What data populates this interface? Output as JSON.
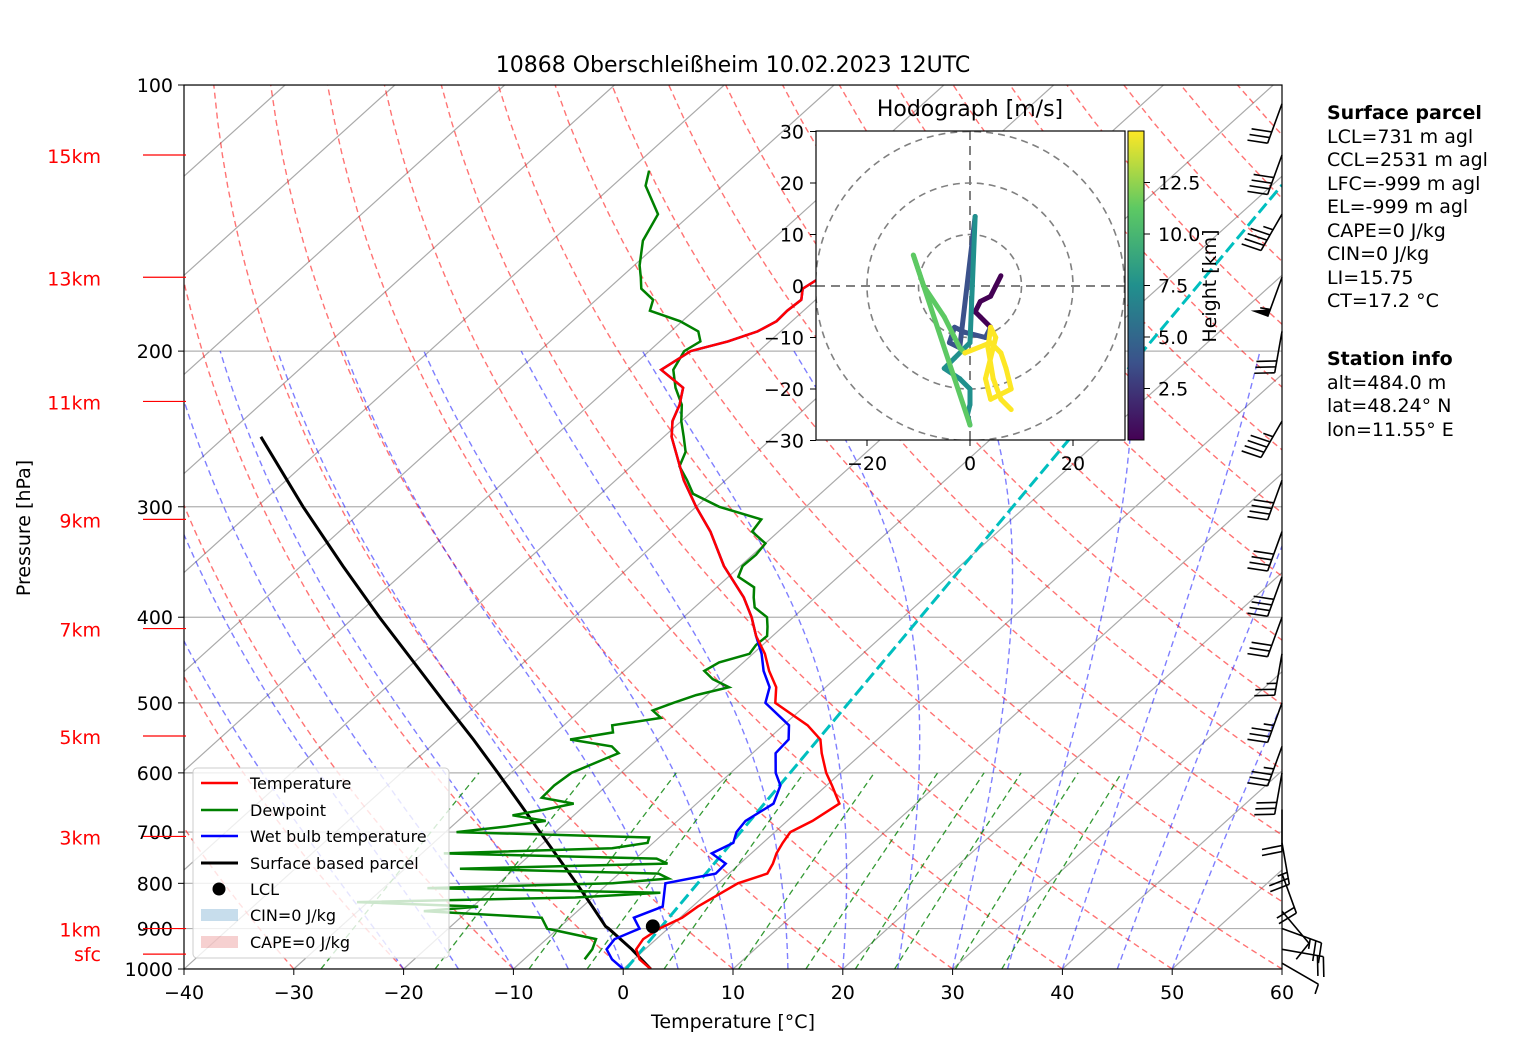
{
  "chart_data": {
    "type": "skew-t",
    "title": "10868 Oberschleißheim 10.02.2023 12UTC",
    "xlabel": "Temperature [°C]",
    "ylabel": "Pressure [hPa]",
    "xlim": [
      -40,
      60
    ],
    "ylim": [
      1000,
      100
    ],
    "y_scale": "log",
    "grid": true,
    "x_ticks": [
      "−40",
      "−30",
      "−20",
      "−10",
      "0",
      "10",
      "20",
      "30",
      "40",
      "50",
      "60"
    ],
    "y_ticks": [
      "100",
      "200",
      "300",
      "400",
      "500",
      "600",
      "700",
      "800",
      "900",
      "1000"
    ],
    "height_labels": [
      "15km",
      "13km",
      "11km",
      "9km",
      "7km",
      "5km",
      "3km",
      "1km",
      "sfc"
    ],
    "legend_position": "lower-left",
    "legend": {
      "temperature": "Temperature",
      "dewpoint": "Dewpoint",
      "wetbulb": "Wet bulb temperature",
      "parcel": "Surface based parcel",
      "lcl": "LCL",
      "cin": "CIN=0 J/kg",
      "cape": "CAPE=0 J/kg"
    },
    "colors": {
      "temperature": "#ff0000",
      "dewpoint": "#008000",
      "wetbulb": "#0000ff",
      "parcel": "#000000",
      "mixing_ratio_line": "#00bfbf"
    },
    "temperature": {
      "p": [
        1000,
        975,
        950,
        925,
        900,
        875,
        850,
        800,
        780,
        760,
        740,
        720,
        700,
        680,
        650,
        620,
        600,
        570,
        550,
        530,
        500,
        480,
        460,
        440,
        420,
        400,
        380,
        350,
        320,
        300,
        280,
        260,
        250,
        240,
        230,
        220,
        210,
        200,
        195,
        190,
        185,
        180,
        175,
        170,
        160,
        150,
        140,
        130,
        128,
        126,
        125
      ],
      "T": [
        2.5,
        0.5,
        -0.8,
        -1.2,
        -0.8,
        0.2,
        0.5,
        1.8,
        3.5,
        3.0,
        2.3,
        1.8,
        1.4,
        2.3,
        3.0,
        0.5,
        -1.3,
        -3.7,
        -5.2,
        -7.8,
        -13.0,
        -14.5,
        -16.8,
        -18.9,
        -21.5,
        -23.8,
        -26.5,
        -31.5,
        -36.2,
        -40.0,
        -43.8,
        -47.4,
        -49.3,
        -50.8,
        -51.8,
        -53.2,
        -57.0,
        -56.2,
        -53.8,
        -52.1,
        -51.4,
        -51.5,
        -51.3,
        -52.3,
        -51.3,
        -54.1,
        -52.7,
        -52.1,
        -49.9,
        -49.1,
        -50.4
      ]
    },
    "dewpoint": {
      "p": [
        975,
        950,
        925,
        900,
        875,
        860,
        850,
        840,
        830,
        820,
        810,
        800,
        790,
        780,
        770,
        760,
        750,
        740,
        730,
        720,
        710,
        700,
        690,
        680,
        670,
        660,
        650,
        640,
        620,
        600,
        580,
        570,
        560,
        550,
        540,
        530,
        520,
        510,
        500,
        490,
        480,
        470,
        460,
        450,
        440,
        430,
        420,
        410,
        400,
        390,
        380,
        370,
        360,
        350,
        340,
        330,
        320,
        310,
        300,
        290,
        280,
        270,
        260,
        250,
        240,
        230,
        220,
        210,
        200,
        195,
        190,
        185,
        180,
        175,
        170,
        165,
        160,
        150,
        140,
        130,
        125
      ],
      "Td": [
        -4.5,
        -4.8,
        -5.5,
        -11.0,
        -12.6,
        -24.0,
        -19.5,
        -31.0,
        -11.6,
        -4.3,
        -26.0,
        -9.6,
        -5.0,
        -6.4,
        -25.0,
        -6.6,
        -8.1,
        -28.0,
        -13.2,
        -10.5,
        -10.9,
        -29.0,
        -25.0,
        -22.0,
        -25.6,
        -23.2,
        -21.2,
        -24.7,
        -24.8,
        -24.5,
        -23.0,
        -22.2,
        -23.5,
        -28.0,
        -24.8,
        -25.6,
        -21.9,
        -23.4,
        -22.3,
        -21.0,
        -18.8,
        -21.1,
        -22.7,
        -22.2,
        -20.3,
        -20.6,
        -20.5,
        -21.4,
        -22.4,
        -24.5,
        -25.6,
        -26.6,
        -29.1,
        -29.8,
        -29.7,
        -30.0,
        -32.4,
        -32.8,
        -37.9,
        -41.6,
        -43.5,
        -45.6,
        -46.5,
        -48.2,
        -50.0,
        -51.6,
        -53.9,
        -55.9,
        -56.8,
        -56.3,
        -57.5,
        -60.2,
        -64.0,
        -64.8,
        -67.0,
        -68.2,
        -69.5,
        -71.7,
        -73.0,
        -77.0,
        -78.2
      ]
    },
    "wetbulb": {
      "p": [
        1000,
        975,
        950,
        925,
        900,
        875,
        850,
        800,
        780,
        760,
        740,
        720,
        700,
        680,
        650,
        620,
        600,
        570,
        550,
        530,
        500,
        480,
        460,
        440,
        420,
        400,
        380,
        350,
        320,
        300,
        280,
        260,
        250,
        240,
        230,
        220,
        210,
        200,
        195,
        190,
        185,
        180,
        175,
        170,
        160,
        150,
        140,
        130,
        128,
        126,
        125
      ],
      "Tw": [
        0.0,
        -2.0,
        -3.5,
        -3.8,
        -2.6,
        -4.2,
        -2.7,
        -4.8,
        -1.2,
        -1.3,
        -3.6,
        -2.7,
        -3.5,
        -3.8,
        -3.0,
        -4.2,
        -5.9,
        -7.9,
        -8.1,
        -9.5,
        -13.9,
        -15.1,
        -17.3,
        -19.2,
        -21.5,
        -23.8,
        -26.5,
        -31.5,
        -36.2,
        -40.0,
        -43.8,
        -47.4,
        -49.3,
        -50.8,
        -51.8,
        -53.2,
        -57.0,
        -56.2,
        -53.8,
        -52.1,
        -51.4,
        -51.5,
        -51.3,
        -52.3,
        -51.3,
        -54.1,
        -52.7,
        -52.1,
        -49.9,
        -49.1,
        -50.4
      ]
    },
    "parcel": {
      "p": [
        1000,
        950,
        900,
        895,
        850,
        800,
        750,
        700,
        650,
        600,
        550,
        500,
        450,
        400,
        350,
        300,
        250
      ],
      "T": [
        2.5,
        -1.2,
        -5.4,
        -5.9,
        -9.1,
        -12.9,
        -17.0,
        -21.4,
        -26.1,
        -31.2,
        -36.8,
        -43.1,
        -50.0,
        -57.7,
        -66.2,
        -75.8,
        -86.7
      ]
    },
    "lcl": {
      "p": 895,
      "T": -1.6
    },
    "hodograph": {
      "title": "Hodograph [m/s]",
      "colorbar_label": "Height [km]",
      "colorbar_ticks": [
        "2.5",
        "5.0",
        "7.5",
        "10.0",
        "12.5"
      ],
      "x_ticks": [
        "−20",
        "0",
        "20"
      ],
      "y_ticks": [
        "30",
        "20",
        "10",
        "0",
        "−10",
        "−20",
        "−30"
      ],
      "lim": [
        -30,
        30
      ],
      "rings": [
        10,
        20,
        30
      ],
      "u": [
        6.0,
        5.0,
        4.0,
        2.0,
        1.0,
        2.0,
        4.0,
        3.0,
        -1.0,
        -3.0,
        -4.0,
        -2.0,
        1.0,
        0.0,
        -3.0,
        -5.0,
        -2.0,
        0.0,
        0.0,
        -0.5,
        0.0,
        -11.0,
        -9.0,
        -5.0,
        -3.0,
        -2.0,
        -1.0,
        4.0,
        6.0,
        7.0,
        8.0,
        4.0,
        3.0,
        4.0,
        5.0,
        4.0,
        3.5,
        4.5,
        6.0,
        8.0
      ],
      "v": [
        2.0,
        0.0,
        -2.0,
        -3.0,
        -5.0,
        -6.0,
        -8.0,
        -10.0,
        -9.0,
        -8.0,
        -11.0,
        -12.0,
        13.5,
        -11.0,
        -14.0,
        -16.0,
        -18.0,
        -20.0,
        -23.0,
        -25.0,
        -27.0,
        6.0,
        0.0,
        -6.0,
        -10.0,
        -12.0,
        -13.0,
        -11.0,
        -13.0,
        -16.0,
        -20.0,
        -22.0,
        -18.0,
        -14.0,
        -10.0,
        -8.0,
        -12.0,
        -18.0,
        -22.0,
        -24.0
      ],
      "h": [
        0.5,
        0.8,
        1.1,
        1.4,
        1.8,
        2.2,
        2.7,
        3.2,
        3.7,
        4.2,
        4.6,
        5.0,
        5.6,
        6.0,
        6.4,
        6.8,
        7.2,
        7.6,
        8.0,
        8.4,
        8.8,
        9.4,
        10.0,
        10.6,
        11.0,
        11.4,
        11.8,
        12.2,
        12.6,
        13.0,
        13.4,
        13.8,
        14.0,
        14.2,
        14.4,
        14.6,
        14.8,
        14.9,
        15.0,
        15.1
      ]
    },
    "wind_barbs": [
      {
        "p": 985,
        "speed_kt": 5,
        "dir_deg": 120
      },
      {
        "p": 950,
        "speed_kt": 20,
        "dir_deg": 100
      },
      {
        "p": 900,
        "speed_kt": 25,
        "dir_deg": 110
      },
      {
        "p": 860,
        "speed_kt": 10,
        "dir_deg": 140
      },
      {
        "p": 780,
        "speed_kt": 20,
        "dir_deg": 160
      },
      {
        "p": 720,
        "speed_kt": 25,
        "dir_deg": 170
      },
      {
        "p": 660,
        "speed_kt": 20,
        "dir_deg": 180
      },
      {
        "p": 600,
        "speed_kt": 30,
        "dir_deg": 190
      },
      {
        "p": 560,
        "speed_kt": 35,
        "dir_deg": 200
      },
      {
        "p": 500,
        "speed_kt": 35,
        "dir_deg": 200
      },
      {
        "p": 440,
        "speed_kt": 25,
        "dir_deg": 190
      },
      {
        "p": 400,
        "speed_kt": 30,
        "dir_deg": 200
      },
      {
        "p": 360,
        "speed_kt": 40,
        "dir_deg": 200
      },
      {
        "p": 320,
        "speed_kt": 40,
        "dir_deg": 200
      },
      {
        "p": 280,
        "speed_kt": 40,
        "dir_deg": 200
      },
      {
        "p": 240,
        "speed_kt": 45,
        "dir_deg": 210
      },
      {
        "p": 190,
        "speed_kt": 30,
        "dir_deg": 190
      },
      {
        "p": 165,
        "speed_kt": 55,
        "dir_deg": 200
      },
      {
        "p": 140,
        "speed_kt": 45,
        "dir_deg": 210
      },
      {
        "p": 120,
        "speed_kt": 40,
        "dir_deg": 200
      },
      {
        "p": 105,
        "speed_kt": 30,
        "dir_deg": 200
      }
    ]
  },
  "side": {
    "parcel_title": "Surface parcel",
    "lcl": "LCL=731 m agl",
    "ccl": "CCL=2531 m agl",
    "lfc": "LFC=-999 m agl",
    "el": "EL=-999 m agl",
    "cape": "CAPE=0 J/kg",
    "cin": "CIN=0 J/kg",
    "li": "LI=15.75",
    "ct": "CT=17.2 °C",
    "station_title": "Station info",
    "alt": "alt=484.0 m",
    "lat": "lat=48.24° N",
    "lon": "lon=11.55° E"
  }
}
